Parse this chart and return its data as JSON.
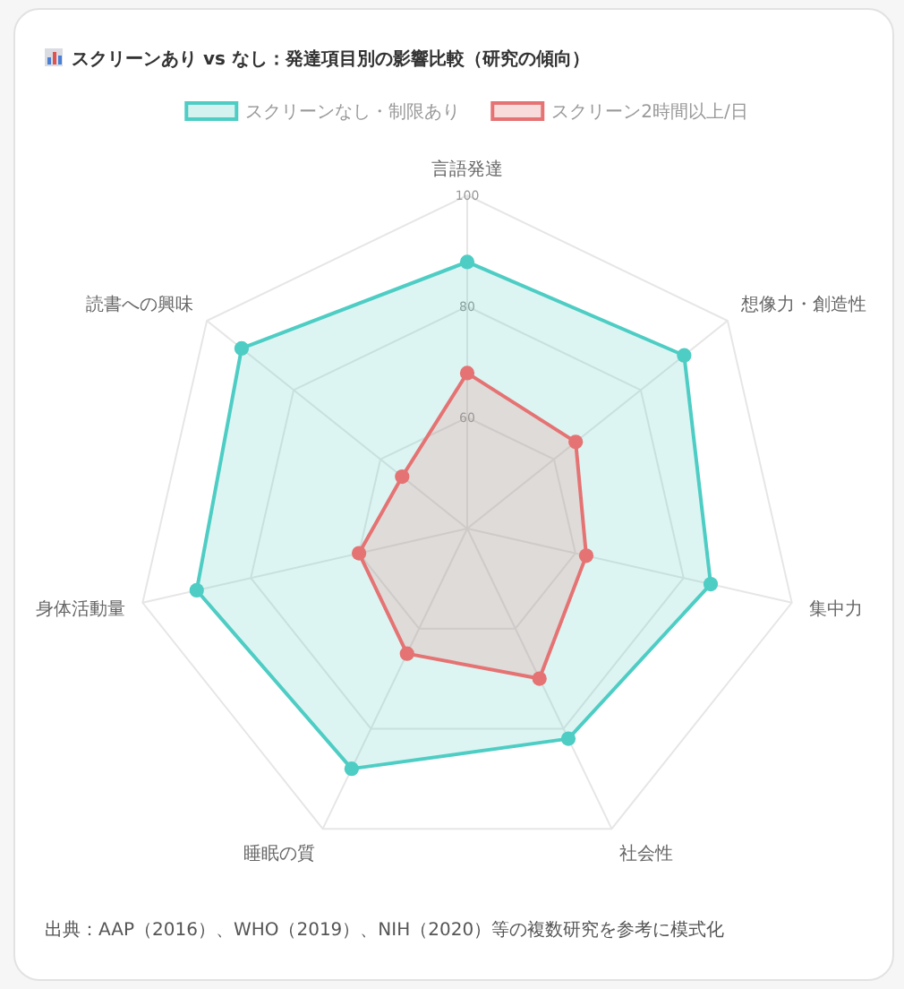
{
  "chart_data": {
    "type": "radar",
    "title": "スクリーンあり vs なし：発達項目別の影響比較（研究の傾向）",
    "categories": [
      "言語発達",
      "想像力・創造性",
      "集中力",
      "社会性",
      "睡眠の質",
      "身体活動量",
      "読書への興味"
    ],
    "series": [
      {
        "name": "スクリーンなし・制限あり",
        "color": "#4ecdc4",
        "values": [
          88,
          90,
          85,
          82,
          88,
          90,
          92
        ]
      },
      {
        "name": "スクリーン2時間以上/日",
        "color": "#e57373",
        "values": [
          68,
          65,
          62,
          70,
          65,
          60,
          55
        ]
      }
    ],
    "ylim": [
      40,
      100
    ],
    "yticks": [
      60,
      80,
      100
    ],
    "grid": true,
    "legend": "top",
    "marker": "circle",
    "annotations": [
      "出典：AAP（2016）、WHO（2019）、NIH（2020）等の複数研究を参考に模式化"
    ]
  }
}
